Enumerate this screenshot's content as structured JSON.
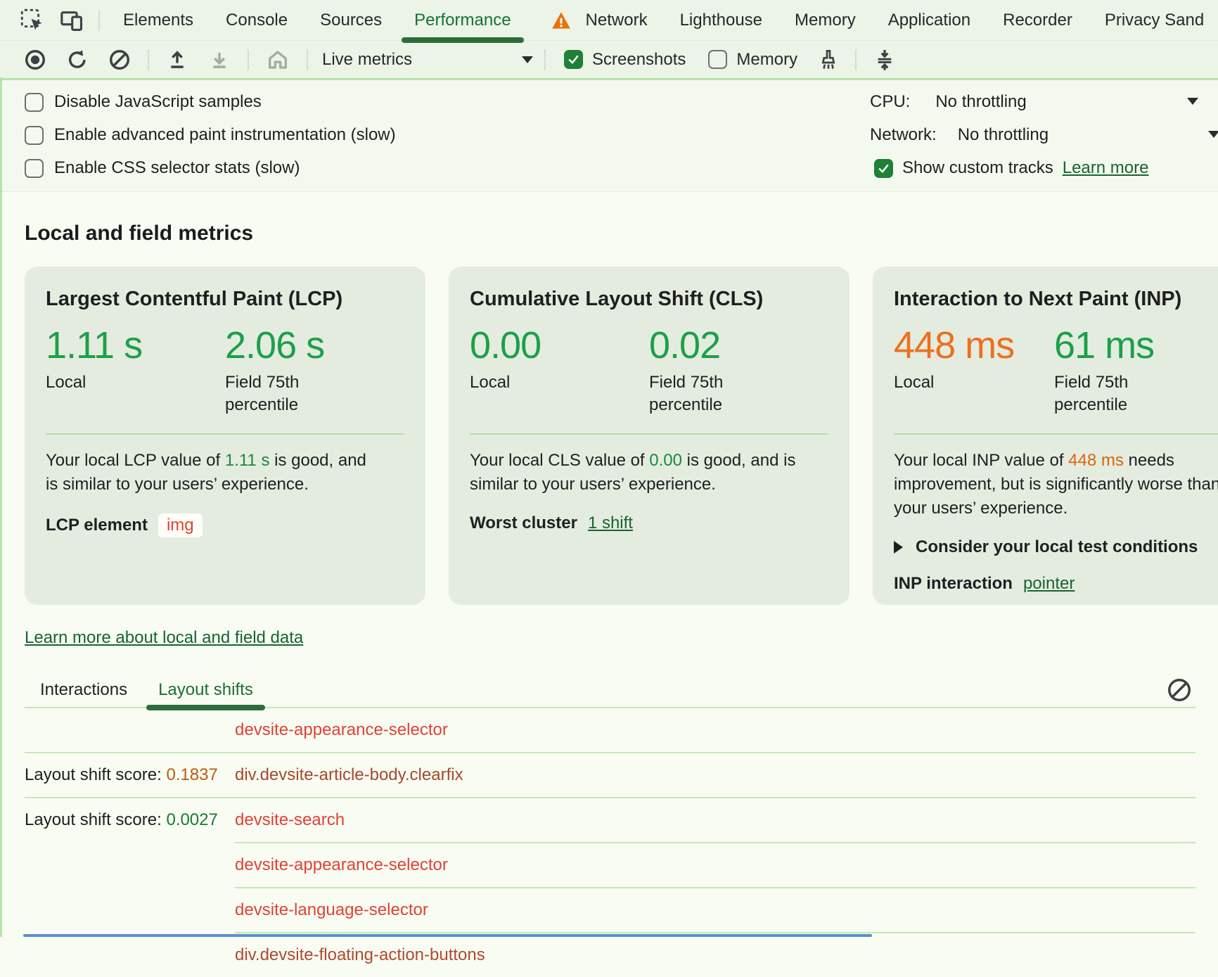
{
  "colors": {
    "accent_green": "#137333",
    "value_green": "#1ba049",
    "value_orange": "#ed701d",
    "link_green": "#176431",
    "checkbox_green": "#1f8038",
    "node_red": "#df4336",
    "node_brown": "#a6492c",
    "score_orange": "#bc5b12",
    "score_green": "#1b7a33",
    "card_bg": "#e4ecdf",
    "toolbar_bg": "#ecf3e7"
  },
  "devtools_tabs": {
    "items": [
      {
        "label": "Elements"
      },
      {
        "label": "Console"
      },
      {
        "label": "Sources"
      },
      {
        "label": "Performance"
      },
      {
        "label": "Network"
      },
      {
        "label": "Lighthouse"
      },
      {
        "label": "Memory"
      },
      {
        "label": "Application"
      },
      {
        "label": "Recorder"
      },
      {
        "label": "Privacy Sand"
      }
    ],
    "active": "Performance"
  },
  "toolbar": {
    "dropdown_label": "Live metrics",
    "screenshots_label": "Screenshots",
    "memory_label": "Memory"
  },
  "settings": {
    "checkboxes": [
      {
        "label": "Disable JavaScript samples",
        "checked": false
      },
      {
        "label": "Enable advanced paint instrumentation (slow)",
        "checked": false
      },
      {
        "label": "Enable CSS selector stats (slow)",
        "checked": false
      }
    ],
    "cpu_label": "CPU:",
    "cpu_value": "No throttling",
    "network_label": "Network:",
    "network_value": "No throttling",
    "custom_tracks_label": "Show custom tracks",
    "custom_tracks_checked": true,
    "learn_more_label": "Learn more"
  },
  "metrics": {
    "heading": "Local and field metrics",
    "cards": [
      {
        "title": "Largest Contentful Paint (LCP)",
        "local_value": "1.11 s",
        "local_label": "Local",
        "field_value": "2.06 s",
        "field_label": "Field 75th percentile",
        "desc_prefix": "Your local LCP value of ",
        "desc_value": "1.11 s",
        "desc_suffix": " is good, and is similar to your users’ experience.",
        "footer_label": "LCP element",
        "footer_chip": "img"
      },
      {
        "title": "Cumulative Layout Shift (CLS)",
        "local_value": "0.00",
        "local_label": "Local",
        "field_value": "0.02",
        "field_label": "Field 75th percentile",
        "desc_prefix": "Your local CLS value of ",
        "desc_value": "0.00",
        "desc_suffix": " is good, and is similar to your users’ experience.",
        "footer_label": "Worst cluster",
        "footer_link": "1 shift"
      },
      {
        "title": "Interaction to Next Paint (INP)",
        "local_value": "448 ms",
        "local_label": "Local",
        "field_value": "61 ms",
        "field_label": "Field 75th percentile",
        "desc_prefix": "Your local INP value of ",
        "desc_value": "448 ms",
        "desc_suffix": " needs improvement, but is significantly worse than your users’ experience.",
        "disclosure_label": "Consider your local test conditions",
        "footer_label": "INP interaction",
        "footer_link": "pointer"
      }
    ],
    "learn_more_link": "Learn more about local and field data"
  },
  "log": {
    "tabs": [
      {
        "label": "Interactions"
      },
      {
        "label": "Layout shifts"
      }
    ],
    "active_tab": "Layout shifts",
    "rows": [
      {
        "score_label": "",
        "score_value": "",
        "node": "devsite-appearance-selector",
        "node_color": "#df4336",
        "separator": "full"
      },
      {
        "score_label": "Layout shift score: ",
        "score_value": "0.1837",
        "score_color": "#bc5b12",
        "node": "div.devsite-article-body.clearfix",
        "node_color": "#a6492c",
        "separator": "full"
      },
      {
        "score_label": "Layout shift score: ",
        "score_value": "0.0027",
        "score_color": "#1b7a33",
        "node": "devsite-search",
        "node_color": "#df4336",
        "separator": "indent"
      },
      {
        "score_label": "",
        "score_value": "",
        "node": "devsite-appearance-selector",
        "node_color": "#df4336",
        "separator": "indent"
      },
      {
        "score_label": "",
        "score_value": "",
        "node": "devsite-language-selector",
        "node_color": "#df4336",
        "separator": "indent"
      },
      {
        "score_label": "",
        "score_value": "",
        "node": "div.devsite-floating-action-buttons",
        "node_color": "#b04a2e",
        "separator": "none"
      }
    ]
  }
}
